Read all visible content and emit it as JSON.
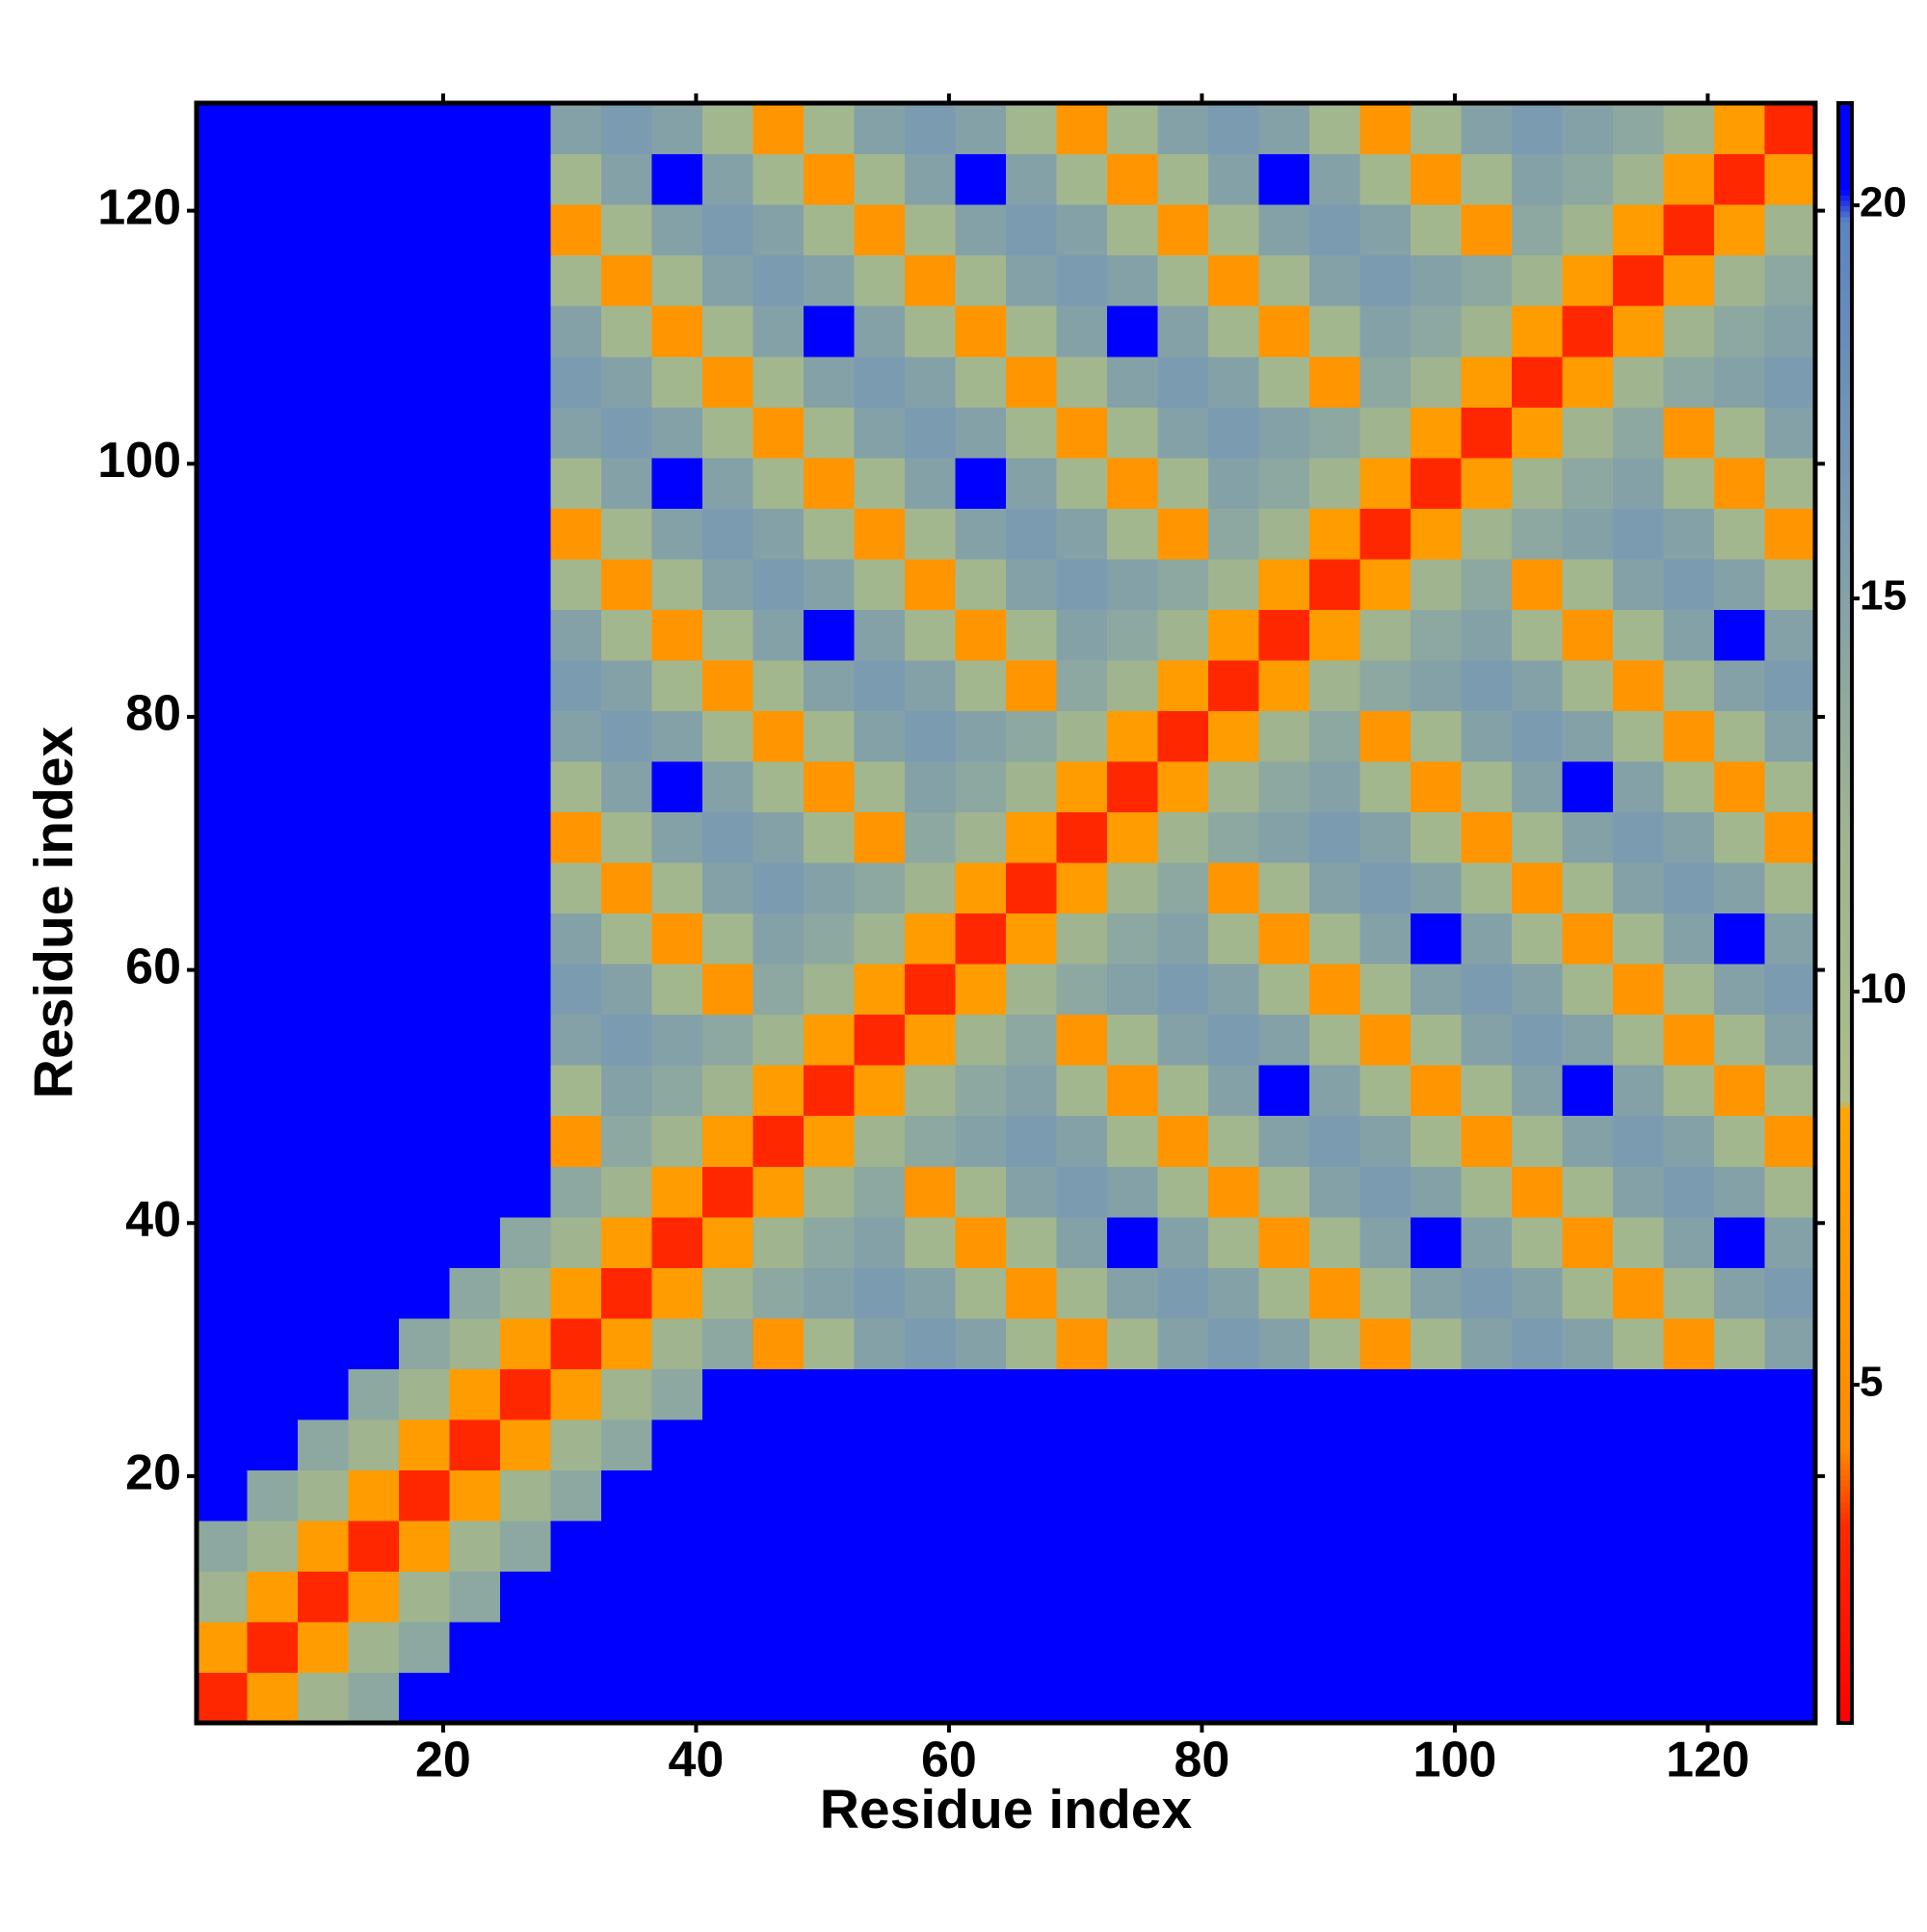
{
  "chart_data": {
    "type": "heatmap",
    "x_label": "Residue index",
    "y_label": "Residue index",
    "xbins": [
      0.5,
      4.5,
      8.5,
      12.5,
      16.5,
      20.5,
      24.5,
      28.5,
      32.5,
      36.5,
      40.5,
      44.5,
      48.5,
      52.5,
      56.5,
      60.5,
      64.5,
      68.5,
      72.5,
      76.5,
      80.5,
      84.5,
      88.5,
      92.5,
      96.5,
      100.5,
      104.5,
      108.5,
      112.5,
      116.5,
      120.5,
      124.5,
      128.5
    ],
    "ybins": [
      0.5,
      4.5,
      8.5,
      12.5,
      16.5,
      20.5,
      24.5,
      28.5,
      32.5,
      36.5,
      40.5,
      44.5,
      48.5,
      52.5,
      56.5,
      60.5,
      64.5,
      68.5,
      72.5,
      76.5,
      80.5,
      84.5,
      88.5,
      92.5,
      96.5,
      100.5,
      104.5,
      108.5,
      112.5,
      116.5,
      120.5,
      124.5,
      128.5
    ],
    "xlim": [
      0.5,
      128.5
    ],
    "ylim": [
      0.5,
      128.5
    ],
    "xticks": [
      20,
      40,
      60,
      80,
      100,
      120
    ],
    "yticks": [
      20,
      40,
      60,
      80,
      100,
      120
    ],
    "clim": [
      0.7,
      21.3
    ],
    "cticks": [
      5,
      10,
      15,
      20
    ],
    "colorscale": [
      [
        0.7,
        "#ff0000"
      ],
      [
        3.2,
        "#ff2a00"
      ],
      [
        4.2,
        "#ff8a00"
      ],
      [
        8.5,
        "#ffa500"
      ],
      [
        8.6,
        "#aebd8a"
      ],
      [
        12,
        "#9fb48f"
      ],
      [
        16,
        "#7b9bb0"
      ],
      [
        19.8,
        "#5d84c2"
      ],
      [
        20.2,
        "#0000ff"
      ],
      [
        21.3,
        "#0000ff"
      ]
    ],
    "values": [
      [
        3,
        7,
        12,
        14,
        21,
        21,
        21,
        21,
        21,
        21,
        21,
        21,
        21,
        21,
        21,
        21,
        21,
        21,
        21,
        21,
        21,
        21,
        21,
        21,
        21,
        21,
        21,
        21,
        21,
        21,
        21,
        21
      ],
      [
        7,
        3,
        7,
        12,
        14,
        21,
        21,
        21,
        21,
        21,
        21,
        21,
        21,
        21,
        21,
        21,
        21,
        21,
        21,
        21,
        21,
        21,
        21,
        21,
        21,
        21,
        21,
        21,
        21,
        21,
        21,
        21
      ],
      [
        12,
        7,
        3,
        7,
        12,
        14,
        21,
        21,
        21,
        21,
        21,
        21,
        21,
        21,
        21,
        21,
        21,
        21,
        21,
        21,
        21,
        21,
        21,
        21,
        21,
        21,
        21,
        21,
        21,
        21,
        21,
        21
      ],
      [
        14,
        12,
        7,
        3,
        7,
        12,
        14,
        21,
        21,
        21,
        21,
        21,
        21,
        21,
        21,
        21,
        21,
        21,
        21,
        21,
        21,
        21,
        21,
        21,
        21,
        21,
        21,
        21,
        21,
        21,
        21,
        21
      ],
      [
        21,
        14,
        12,
        7,
        3,
        7,
        12,
        14,
        21,
        21,
        21,
        21,
        21,
        21,
        21,
        21,
        21,
        21,
        21,
        21,
        21,
        21,
        21,
        21,
        21,
        21,
        21,
        21,
        21,
        21,
        21,
        21
      ],
      [
        21,
        21,
        14,
        12,
        7,
        3,
        7,
        12,
        14,
        21,
        21,
        21,
        21,
        21,
        21,
        21,
        21,
        21,
        21,
        21,
        21,
        21,
        21,
        21,
        21,
        21,
        21,
        21,
        21,
        21,
        21,
        21
      ],
      [
        21,
        21,
        21,
        14,
        12,
        7,
        3,
        7,
        12,
        14,
        21,
        21,
        21,
        21,
        21,
        21,
        21,
        21,
        21,
        21,
        21,
        21,
        21,
        21,
        21,
        21,
        21,
        21,
        21,
        21,
        21,
        21
      ],
      [
        21,
        21,
        21,
        21,
        14,
        12,
        7,
        3,
        7,
        12,
        14,
        6,
        11,
        15,
        16,
        15,
        11,
        6,
        11,
        15,
        16,
        15,
        11,
        6,
        11,
        15,
        16,
        15,
        11,
        6,
        11,
        15
      ],
      [
        21,
        21,
        21,
        21,
        21,
        14,
        12,
        7,
        3,
        7,
        12,
        14,
        15,
        16,
        15,
        11,
        6,
        11,
        15,
        16,
        15,
        11,
        6,
        11,
        15,
        16,
        15,
        11,
        6,
        11,
        15,
        16
      ],
      [
        21,
        21,
        21,
        21,
        21,
        21,
        14,
        12,
        7,
        3,
        7,
        12,
        14,
        15,
        11,
        6,
        11,
        15,
        21,
        15,
        11,
        6,
        11,
        15,
        21,
        15,
        11,
        6,
        11,
        15,
        21,
        15
      ],
      [
        21,
        21,
        21,
        21,
        21,
        21,
        21,
        14,
        12,
        7,
        3,
        7,
        12,
        14,
        6,
        11,
        15,
        16,
        15,
        11,
        6,
        11,
        15,
        16,
        15,
        11,
        6,
        11,
        15,
        16,
        15,
        11
      ],
      [
        21,
        21,
        21,
        21,
        21,
        21,
        21,
        6,
        14,
        12,
        7,
        3,
        7,
        12,
        14,
        15,
        16,
        15,
        11,
        6,
        11,
        15,
        16,
        15,
        11,
        6,
        11,
        15,
        16,
        15,
        11,
        6
      ],
      [
        21,
        21,
        21,
        21,
        21,
        21,
        21,
        11,
        15,
        14,
        12,
        7,
        3,
        7,
        12,
        14,
        15,
        11,
        6,
        11,
        15,
        21,
        15,
        11,
        6,
        11,
        15,
        21,
        15,
        11,
        6,
        11
      ],
      [
        21,
        21,
        21,
        21,
        21,
        21,
        21,
        15,
        16,
        15,
        14,
        12,
        7,
        3,
        7,
        12,
        14,
        6,
        11,
        15,
        16,
        15,
        11,
        6,
        11,
        15,
        16,
        15,
        11,
        6,
        11,
        15
      ],
      [
        21,
        21,
        21,
        21,
        21,
        21,
        21,
        16,
        15,
        11,
        6,
        14,
        12,
        7,
        3,
        7,
        12,
        14,
        15,
        16,
        15,
        11,
        6,
        11,
        15,
        16,
        15,
        11,
        6,
        11,
        15,
        16
      ],
      [
        21,
        21,
        21,
        21,
        21,
        21,
        21,
        15,
        11,
        6,
        11,
        15,
        14,
        12,
        7,
        3,
        7,
        12,
        14,
        15,
        11,
        6,
        11,
        15,
        21,
        15,
        11,
        6,
        11,
        15,
        21,
        15
      ],
      [
        21,
        21,
        21,
        21,
        21,
        21,
        21,
        11,
        6,
        11,
        15,
        16,
        15,
        14,
        12,
        7,
        3,
        7,
        12,
        14,
        6,
        11,
        15,
        16,
        15,
        11,
        6,
        11,
        15,
        16,
        15,
        11
      ],
      [
        21,
        21,
        21,
        21,
        21,
        21,
        21,
        6,
        11,
        15,
        16,
        15,
        11,
        6,
        14,
        12,
        7,
        3,
        7,
        12,
        14,
        15,
        16,
        15,
        11,
        6,
        11,
        15,
        16,
        15,
        11,
        6
      ],
      [
        21,
        21,
        21,
        21,
        21,
        21,
        21,
        11,
        15,
        21,
        15,
        11,
        6,
        11,
        15,
        14,
        12,
        7,
        3,
        7,
        12,
        14,
        15,
        11,
        6,
        11,
        15,
        21,
        15,
        11,
        6,
        11
      ],
      [
        21,
        21,
        21,
        21,
        21,
        21,
        21,
        15,
        16,
        15,
        11,
        6,
        11,
        15,
        16,
        15,
        14,
        12,
        7,
        3,
        7,
        12,
        14,
        6,
        11,
        15,
        16,
        15,
        11,
        6,
        11,
        15
      ],
      [
        21,
        21,
        21,
        21,
        21,
        21,
        21,
        16,
        15,
        11,
        6,
        11,
        15,
        16,
        15,
        11,
        6,
        14,
        12,
        7,
        3,
        7,
        12,
        14,
        15,
        16,
        15,
        11,
        6,
        11,
        15,
        16
      ],
      [
        21,
        21,
        21,
        21,
        21,
        21,
        21,
        15,
        11,
        6,
        11,
        15,
        21,
        15,
        11,
        6,
        11,
        15,
        14,
        12,
        7,
        3,
        7,
        12,
        14,
        15,
        11,
        6,
        11,
        15,
        21,
        15
      ],
      [
        21,
        21,
        21,
        21,
        21,
        21,
        21,
        11,
        6,
        11,
        15,
        16,
        15,
        11,
        6,
        11,
        15,
        16,
        15,
        14,
        12,
        7,
        3,
        7,
        12,
        14,
        6,
        11,
        15,
        16,
        15,
        11
      ],
      [
        21,
        21,
        21,
        21,
        21,
        21,
        21,
        6,
        11,
        15,
        16,
        15,
        11,
        6,
        11,
        15,
        16,
        15,
        11,
        6,
        14,
        12,
        7,
        3,
        7,
        12,
        14,
        15,
        16,
        15,
        11,
        6
      ],
      [
        21,
        21,
        21,
        21,
        21,
        21,
        21,
        11,
        15,
        21,
        15,
        11,
        6,
        11,
        15,
        21,
        15,
        11,
        6,
        11,
        15,
        14,
        12,
        7,
        3,
        7,
        12,
        14,
        15,
        11,
        6,
        11
      ],
      [
        21,
        21,
        21,
        21,
        21,
        21,
        21,
        15,
        16,
        15,
        11,
        6,
        11,
        15,
        16,
        15,
        11,
        6,
        11,
        15,
        16,
        15,
        14,
        12,
        7,
        3,
        7,
        12,
        14,
        6,
        11,
        15
      ],
      [
        21,
        21,
        21,
        21,
        21,
        21,
        21,
        16,
        15,
        11,
        6,
        11,
        15,
        16,
        15,
        11,
        6,
        11,
        15,
        16,
        15,
        11,
        6,
        14,
        12,
        7,
        3,
        7,
        12,
        14,
        15,
        16
      ],
      [
        21,
        21,
        21,
        21,
        21,
        21,
        21,
        15,
        11,
        6,
        11,
        15,
        21,
        15,
        11,
        6,
        11,
        15,
        21,
        15,
        11,
        6,
        11,
        15,
        14,
        12,
        7,
        3,
        7,
        12,
        14,
        15
      ],
      [
        21,
        21,
        21,
        21,
        21,
        21,
        21,
        11,
        6,
        11,
        15,
        16,
        15,
        11,
        6,
        11,
        15,
        16,
        15,
        11,
        6,
        11,
        15,
        16,
        15,
        14,
        12,
        7,
        3,
        7,
        12,
        14
      ],
      [
        21,
        21,
        21,
        21,
        21,
        21,
        21,
        6,
        11,
        15,
        16,
        15,
        11,
        6,
        11,
        15,
        16,
        15,
        11,
        6,
        11,
        15,
        16,
        15,
        11,
        6,
        14,
        12,
        7,
        3,
        7,
        12
      ],
      [
        21,
        21,
        21,
        21,
        21,
        21,
        21,
        11,
        15,
        21,
        15,
        11,
        6,
        11,
        15,
        21,
        15,
        11,
        6,
        11,
        15,
        21,
        15,
        11,
        6,
        11,
        15,
        14,
        12,
        7,
        3,
        7
      ],
      [
        21,
        21,
        21,
        21,
        21,
        21,
        21,
        15,
        16,
        15,
        11,
        6,
        11,
        15,
        16,
        15,
        11,
        6,
        11,
        15,
        16,
        15,
        11,
        6,
        11,
        15,
        16,
        15,
        14,
        12,
        7,
        3
      ]
    ]
  }
}
